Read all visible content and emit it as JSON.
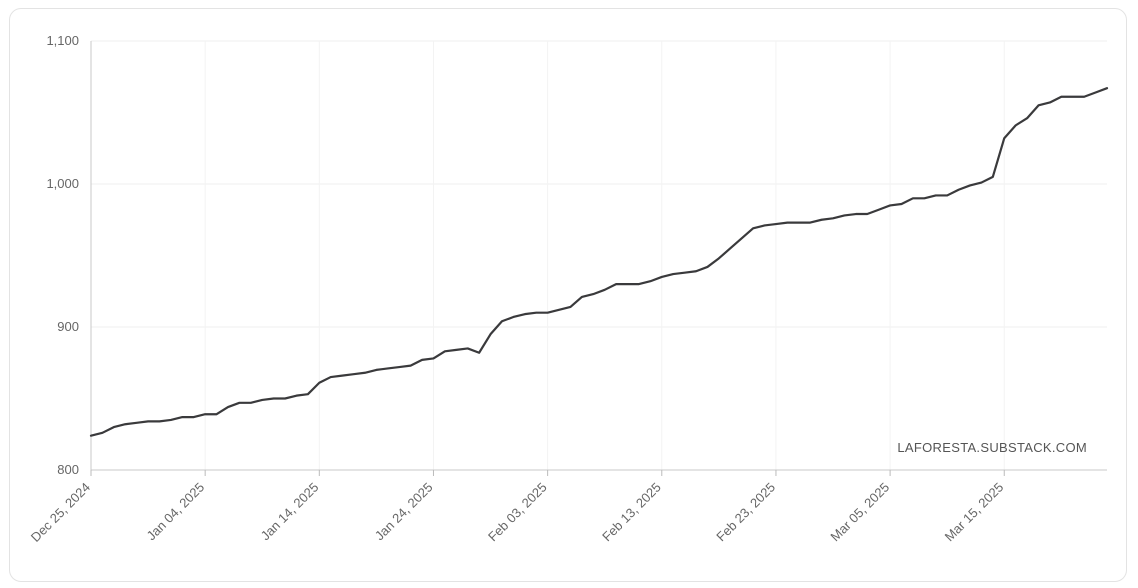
{
  "chart_data": {
    "type": "line",
    "title": "",
    "xlabel": "",
    "ylabel": "",
    "ylim": [
      800,
      1100
    ],
    "yticks": [
      800,
      900,
      1000,
      1100
    ],
    "ytick_labels": [
      "800",
      "900",
      "1,000",
      "1,100"
    ],
    "x_start": "2024-12-25",
    "x_end": "2025-03-24",
    "xtick_dates": [
      "2024-12-25",
      "2025-01-04",
      "2025-01-14",
      "2025-01-24",
      "2025-02-03",
      "2025-02-13",
      "2025-02-23",
      "2025-03-05",
      "2025-03-15"
    ],
    "xtick_labels": [
      "Dec 25, 2024",
      "Jan 04, 2025",
      "Jan 14, 2025",
      "Jan 24, 2025",
      "Feb 03, 2025",
      "Feb 13, 2025",
      "Feb 23, 2025",
      "Mar 05, 2025",
      "Mar 15, 2025"
    ],
    "grid": true,
    "line_color": "#3a3a3c",
    "series": [
      {
        "name": "",
        "x": [
          "2024-12-25",
          "2024-12-26",
          "2024-12-27",
          "2024-12-28",
          "2024-12-29",
          "2024-12-30",
          "2024-12-31",
          "2025-01-01",
          "2025-01-02",
          "2025-01-03",
          "2025-01-04",
          "2025-01-05",
          "2025-01-06",
          "2025-01-07",
          "2025-01-08",
          "2025-01-09",
          "2025-01-10",
          "2025-01-11",
          "2025-01-12",
          "2025-01-13",
          "2025-01-14",
          "2025-01-15",
          "2025-01-16",
          "2025-01-17",
          "2025-01-18",
          "2025-01-19",
          "2025-01-20",
          "2025-01-21",
          "2025-01-22",
          "2025-01-23",
          "2025-01-24",
          "2025-01-25",
          "2025-01-26",
          "2025-01-27",
          "2025-01-28",
          "2025-01-29",
          "2025-01-30",
          "2025-01-31",
          "2025-02-01",
          "2025-02-02",
          "2025-02-03",
          "2025-02-04",
          "2025-02-05",
          "2025-02-06",
          "2025-02-07",
          "2025-02-08",
          "2025-02-09",
          "2025-02-10",
          "2025-02-11",
          "2025-02-12",
          "2025-02-13",
          "2025-02-14",
          "2025-02-15",
          "2025-02-16",
          "2025-02-17",
          "2025-02-18",
          "2025-02-19",
          "2025-02-20",
          "2025-02-21",
          "2025-02-22",
          "2025-02-23",
          "2025-02-24",
          "2025-02-25",
          "2025-02-26",
          "2025-02-27",
          "2025-02-28",
          "2025-03-01",
          "2025-03-02",
          "2025-03-03",
          "2025-03-04",
          "2025-03-05",
          "2025-03-06",
          "2025-03-07",
          "2025-03-08",
          "2025-03-09",
          "2025-03-10",
          "2025-03-11",
          "2025-03-12",
          "2025-03-13",
          "2025-03-14",
          "2025-03-15",
          "2025-03-16",
          "2025-03-17",
          "2025-03-18",
          "2025-03-19",
          "2025-03-20",
          "2025-03-21",
          "2025-03-22",
          "2025-03-23",
          "2025-03-24"
        ],
        "values": [
          824,
          826,
          830,
          832,
          833,
          834,
          834,
          835,
          837,
          837,
          839,
          839,
          844,
          847,
          847,
          849,
          850,
          850,
          852,
          853,
          861,
          865,
          866,
          867,
          868,
          870,
          871,
          872,
          873,
          877,
          878,
          883,
          884,
          885,
          882,
          895,
          904,
          907,
          909,
          910,
          910,
          912,
          914,
          921,
          923,
          926,
          930,
          930,
          930,
          932,
          935,
          937,
          938,
          939,
          942,
          948,
          955,
          962,
          969,
          971,
          972,
          973,
          973,
          973,
          975,
          976,
          978,
          979,
          979,
          982,
          985,
          986,
          990,
          990,
          992,
          992,
          996,
          999,
          1001,
          1005,
          1032,
          1041,
          1046,
          1055,
          1057,
          1061,
          1061,
          1061,
          1064,
          1067
        ]
      }
    ],
    "watermark": "LAFORESTA.SUBSTACK.COM"
  }
}
